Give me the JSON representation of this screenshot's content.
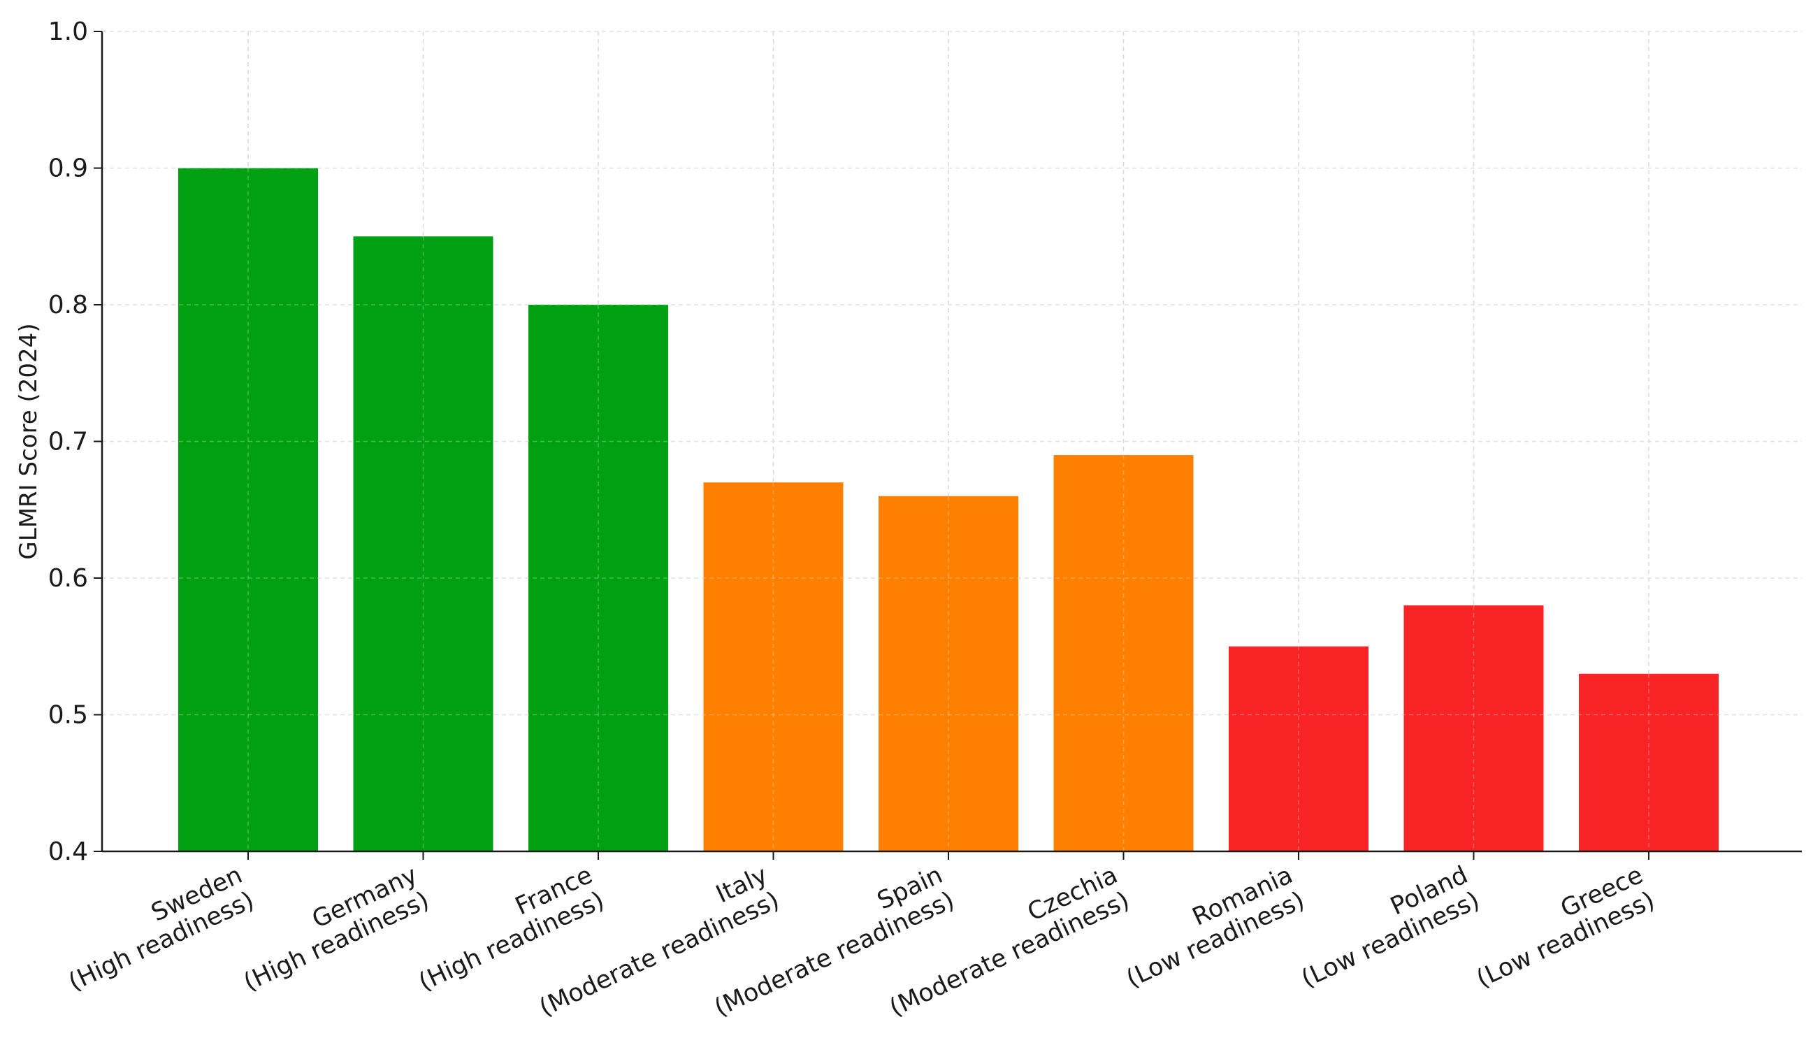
{
  "chart_data": {
    "type": "bar",
    "title": "",
    "xlabel": "",
    "ylabel": "GLMRI Score (2024)",
    "ylim": [
      0.4,
      1.0
    ],
    "yticks": [
      "0.4",
      "0.5",
      "0.6",
      "0.7",
      "0.8",
      "0.9",
      "1.0"
    ],
    "grid": true,
    "legend": "none",
    "categories": [
      {
        "name": "Sweden",
        "group": "(High readiness)"
      },
      {
        "name": "Germany",
        "group": "(High readiness)"
      },
      {
        "name": "France",
        "group": "(High readiness)"
      },
      {
        "name": "Italy",
        "group": "(Moderate readiness)"
      },
      {
        "name": "Spain",
        "group": "(Moderate readiness)"
      },
      {
        "name": "Czechia",
        "group": "(Moderate readiness)"
      },
      {
        "name": "Romania",
        "group": "(Low readiness)"
      },
      {
        "name": "Poland",
        "group": "(Low readiness)"
      },
      {
        "name": "Greece",
        "group": "(Low readiness)"
      }
    ],
    "values": [
      0.9,
      0.85,
      0.8,
      0.67,
      0.66,
      0.69,
      0.55,
      0.58,
      0.53
    ],
    "bar_colors": [
      "#00a013",
      "#00a013",
      "#00a013",
      "#ff8000",
      "#ff8000",
      "#ff8000",
      "#f72324",
      "#f72324",
      "#f72324"
    ]
  }
}
